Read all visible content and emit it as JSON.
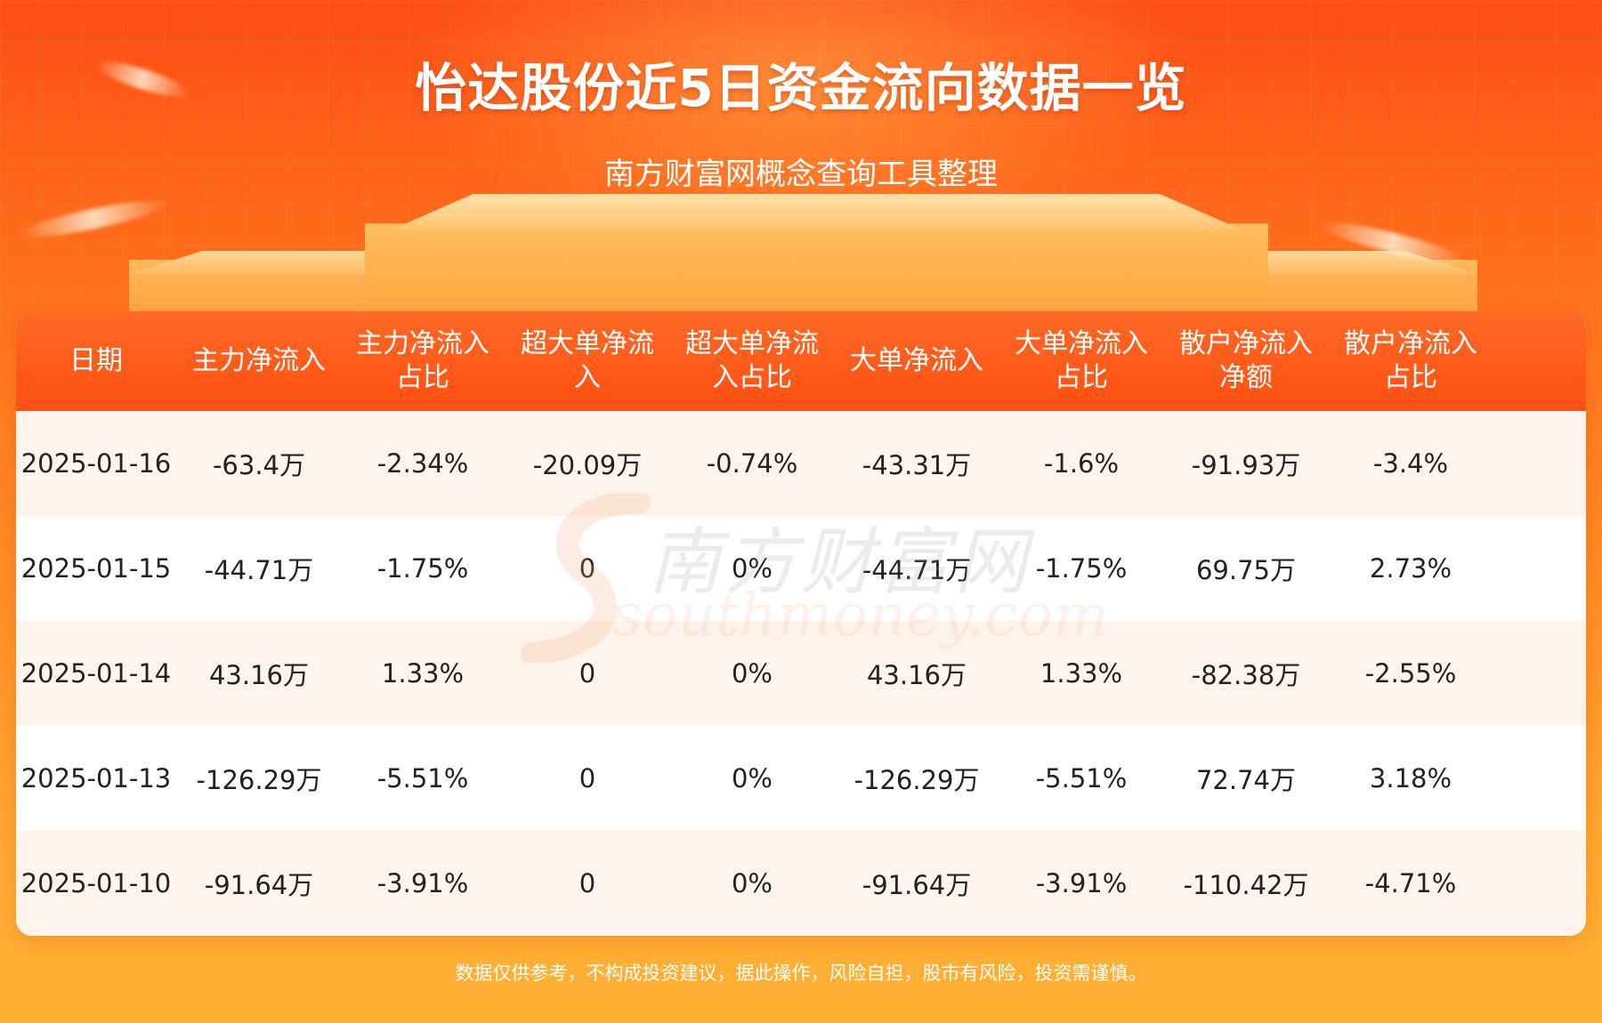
{
  "title": "怡达股份近5日资金流向数据一览",
  "subtitle": "南方财富网概念查询工具整理",
  "columns": [
    [
      "日期"
    ],
    [
      "主力净流入"
    ],
    [
      "主力净流入",
      "占比"
    ],
    [
      "超大单净流",
      "入"
    ],
    [
      "超大单净流",
      "入占比"
    ],
    [
      "大单净流入"
    ],
    [
      "大单净流入",
      "占比"
    ],
    [
      "散户净流入",
      "净额"
    ],
    [
      "散户净流入",
      "占比"
    ]
  ],
  "rows": [
    [
      "2025-01-16",
      "-63.4万",
      "-2.34%",
      "-20.09万",
      "-0.74%",
      "-43.31万",
      "-1.6%",
      "-91.93万",
      "-3.4%"
    ],
    [
      "2025-01-15",
      "-44.71万",
      "-1.75%",
      "0",
      "0%",
      "-44.71万",
      "-1.75%",
      "69.75万",
      "2.73%"
    ],
    [
      "2025-01-14",
      "43.16万",
      "1.33%",
      "0",
      "0%",
      "43.16万",
      "1.33%",
      "-82.38万",
      "-2.55%"
    ],
    [
      "2025-01-13",
      "-126.29万",
      "-5.51%",
      "0",
      "0%",
      "-126.29万",
      "-5.51%",
      "72.74万",
      "3.18%"
    ],
    [
      "2025-01-10",
      "-91.64万",
      "-3.91%",
      "0",
      "0%",
      "-91.64万",
      "-3.91%",
      "-110.42万",
      "-4.71%"
    ]
  ],
  "watermark": {
    "cn": "南方财富网",
    "en": "southmoney.com"
  },
  "disclaimer": "数据仅供参考，不构成投资建议，据此操作，风险自担，股市有风险，投资需谨慎。",
  "colors": {
    "header_bg": "#ff5a1a",
    "row_alt_bg": "#fff4ec",
    "text": "#222222",
    "page_bg_top": "#ff4d16",
    "page_bg_bottom": "#ffb236"
  }
}
